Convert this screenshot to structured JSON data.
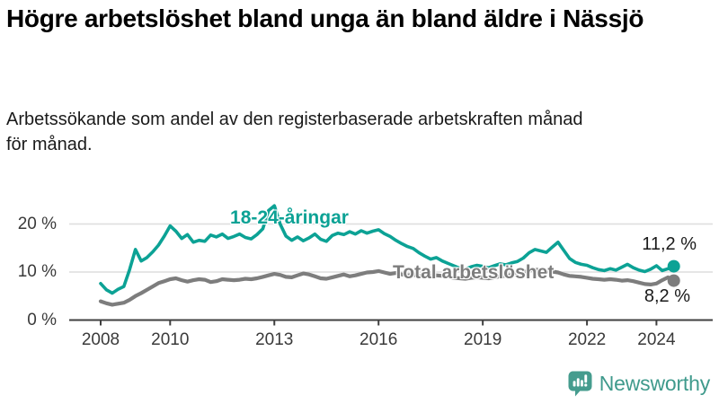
{
  "header": {
    "title": "Högre arbetslöshet bland unga än bland äldre i Nässjö",
    "subtitle": "Arbetssökande som andel av den registerbaserade arbetskraften månad för månad."
  },
  "chart_data": {
    "type": "line",
    "title": "Högre arbetslöshet bland unga än bland äldre i Nässjö",
    "subtitle": "Arbetssökande som andel av den registerbaserade arbetskraften månad för månad.",
    "unit": "%",
    "grid": "horizontal",
    "legend_position": "inline-labels",
    "x_start_year": 2008,
    "points_per_year": 6,
    "x_end_year": 2024.5,
    "ylim": [
      0,
      25
    ],
    "y_ticks": [
      {
        "value": 0,
        "label": "0 %"
      },
      {
        "value": 10,
        "label": "10 %"
      },
      {
        "value": 20,
        "label": "20 %"
      }
    ],
    "x_ticks": [
      {
        "value": 2008,
        "label": "2008"
      },
      {
        "value": 2010,
        "label": "2010"
      },
      {
        "value": 2013,
        "label": "2013"
      },
      {
        "value": 2016,
        "label": "2016"
      },
      {
        "value": 2019,
        "label": "2019"
      },
      {
        "value": 2022,
        "label": "2022"
      },
      {
        "value": 2024,
        "label": "2024"
      }
    ],
    "series": [
      {
        "name": "18-24-åringar",
        "color": "#0ca295",
        "end_label": "11,2 %",
        "end_value": 11.2,
        "values": [
          7.6,
          6.3,
          5.6,
          6.4,
          7.0,
          10.5,
          14.7,
          12.3,
          13.0,
          14.2,
          15.6,
          17.5,
          19.6,
          18.5,
          17.0,
          17.8,
          16.2,
          16.6,
          16.4,
          17.7,
          17.3,
          17.9,
          17.0,
          17.4,
          17.9,
          17.2,
          16.9,
          17.8,
          19.0,
          22.8,
          23.8,
          20.0,
          17.5,
          16.6,
          17.3,
          16.5,
          17.1,
          17.9,
          16.8,
          16.4,
          17.6,
          18.1,
          17.8,
          18.4,
          17.9,
          18.6,
          18.1,
          18.5,
          18.8,
          18.0,
          17.4,
          16.6,
          15.9,
          15.3,
          14.9,
          14.0,
          13.3,
          12.7,
          13.0,
          12.3,
          11.8,
          11.3,
          10.8,
          10.6,
          11.1,
          11.4,
          11.2,
          10.9,
          11.3,
          11.7,
          11.5,
          11.9,
          12.2,
          12.9,
          14.0,
          14.7,
          14.4,
          14.1,
          15.2,
          16.2,
          14.5,
          12.8,
          12.0,
          11.6,
          11.4,
          10.9,
          10.5,
          10.3,
          10.7,
          10.4,
          11.0,
          11.6,
          10.9,
          10.4,
          10.1,
          10.6,
          11.3,
          10.3,
          10.7,
          11.2
        ]
      },
      {
        "name": "Total arbetslöshet",
        "color": "#7d7d7d",
        "end_label": "8,2 %",
        "end_value": 8.2,
        "values": [
          3.9,
          3.5,
          3.2,
          3.4,
          3.6,
          4.2,
          5.0,
          5.6,
          6.3,
          7.0,
          7.7,
          8.1,
          8.5,
          8.7,
          8.3,
          8.0,
          8.3,
          8.5,
          8.4,
          7.9,
          8.1,
          8.5,
          8.4,
          8.3,
          8.4,
          8.6,
          8.5,
          8.7,
          9.0,
          9.3,
          9.6,
          9.4,
          9.0,
          8.9,
          9.3,
          9.7,
          9.5,
          9.1,
          8.7,
          8.6,
          8.9,
          9.2,
          9.5,
          9.1,
          9.3,
          9.6,
          9.9,
          10.0,
          10.2,
          9.9,
          9.6,
          9.8,
          9.5,
          9.3,
          9.4,
          9.2,
          9.0,
          9.1,
          9.3,
          9.2,
          9.0,
          8.8,
          8.7,
          8.6,
          8.8,
          8.9,
          8.8,
          8.7,
          8.9,
          9.1,
          9.2,
          9.4,
          9.6,
          9.9,
          10.3,
          10.5,
          10.4,
          10.2,
          10.1,
          9.9,
          9.5,
          9.2,
          9.1,
          9.0,
          8.8,
          8.6,
          8.5,
          8.4,
          8.5,
          8.4,
          8.2,
          8.3,
          8.1,
          7.8,
          7.5,
          7.4,
          7.6,
          8.3,
          8.9,
          8.2
        ]
      }
    ]
  },
  "branding": {
    "name": "Newsworthy",
    "icon": "bar-chart-speech-bubble-icon"
  }
}
